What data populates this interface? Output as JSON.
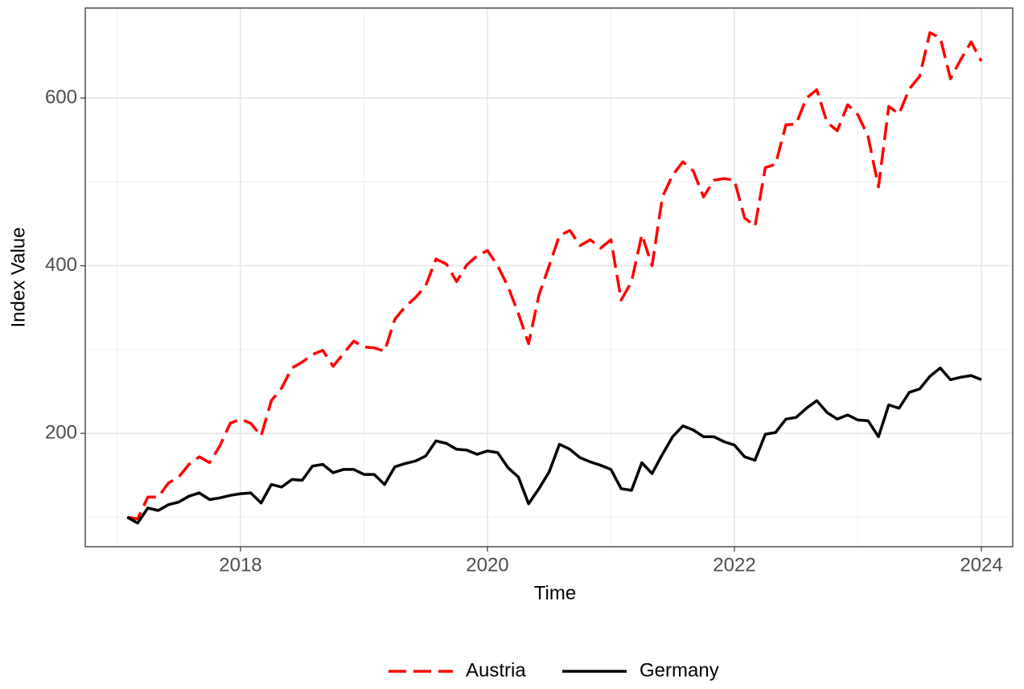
{
  "chart_data": {
    "type": "line",
    "x_label": "Time",
    "y_label": "Index Value",
    "x": [
      2017.083,
      2017.167,
      2017.25,
      2017.333,
      2017.417,
      2017.5,
      2017.583,
      2017.667,
      2017.75,
      2017.833,
      2017.917,
      2018,
      2018.083,
      2018.167,
      2018.25,
      2018.333,
      2018.417,
      2018.5,
      2018.583,
      2018.667,
      2018.75,
      2018.833,
      2018.917,
      2019,
      2019.083,
      2019.167,
      2019.25,
      2019.333,
      2019.417,
      2019.5,
      2019.583,
      2019.667,
      2019.75,
      2019.833,
      2019.917,
      2020,
      2020.083,
      2020.167,
      2020.25,
      2020.333,
      2020.417,
      2020.5,
      2020.583,
      2020.667,
      2020.75,
      2020.833,
      2020.917,
      2021,
      2021.083,
      2021.167,
      2021.25,
      2021.333,
      2021.417,
      2021.5,
      2021.583,
      2021.667,
      2021.75,
      2021.833,
      2021.917,
      2022,
      2022.083,
      2022.167,
      2022.25,
      2022.333,
      2022.417,
      2022.5,
      2022.583,
      2022.667,
      2022.75,
      2022.833,
      2022.917,
      2023,
      2023.083,
      2023.167,
      2023.25,
      2023.333,
      2023.417,
      2023.5,
      2023.583,
      2023.667,
      2023.75,
      2023.833,
      2023.917,
      2024
    ],
    "series": [
      {
        "name": "Austria",
        "color": "#ff0000",
        "dash": true,
        "values": [
          100,
          98,
          124,
          124,
          141,
          148,
          163,
          172,
          165,
          185,
          212,
          217,
          212,
          197,
          239,
          254,
          278,
          285,
          294,
          299,
          280,
          295,
          310,
          303,
          302,
          298,
          336,
          351,
          362,
          376,
          408,
          402,
          381,
          401,
          412,
          418,
          400,
          375,
          343,
          307,
          365,
          400,
          436,
          442,
          424,
          431,
          421,
          431,
          359,
          381,
          437,
          400,
          482,
          508,
          524,
          513,
          482,
          502,
          504,
          502,
          457,
          447,
          517,
          521,
          568,
          569,
          600,
          610,
          571,
          561,
          592,
          580,
          554,
          494,
          590,
          581,
          611,
          626,
          678,
          672,
          623,
          646,
          667,
          644
        ]
      },
      {
        "name": "Germany",
        "color": "#000000",
        "dash": false,
        "values": [
          100,
          93,
          111,
          108,
          115,
          118,
          125,
          129,
          121,
          123,
          126,
          128,
          129,
          117,
          139,
          136,
          145,
          144,
          161,
          163,
          153,
          157,
          157,
          151,
          151,
          139,
          160,
          164,
          167,
          173,
          191,
          188,
          181,
          180,
          175,
          179,
          177,
          159,
          148,
          116,
          134,
          154,
          187,
          181,
          171,
          166,
          162,
          157,
          134,
          132,
          165,
          152,
          175,
          196,
          209,
          204,
          196,
          196,
          190,
          186,
          172,
          168,
          199,
          201,
          217,
          219,
          230,
          239,
          225,
          217,
          222,
          216,
          215,
          196,
          234,
          230,
          249,
          253,
          268,
          278,
          264,
          267,
          269,
          264
        ]
      }
    ],
    "xlim": [
      2016.743,
      2024.254
    ],
    "xticks": [
      2018,
      2020,
      2022,
      2024
    ],
    "xminor": [
      2017,
      2019,
      2021,
      2023
    ],
    "ylim": [
      64.8,
      707.4
    ],
    "yticks": [
      200,
      400,
      600
    ],
    "yminor": [
      100,
      300,
      500
    ],
    "grid": true,
    "legend": "bottom"
  }
}
